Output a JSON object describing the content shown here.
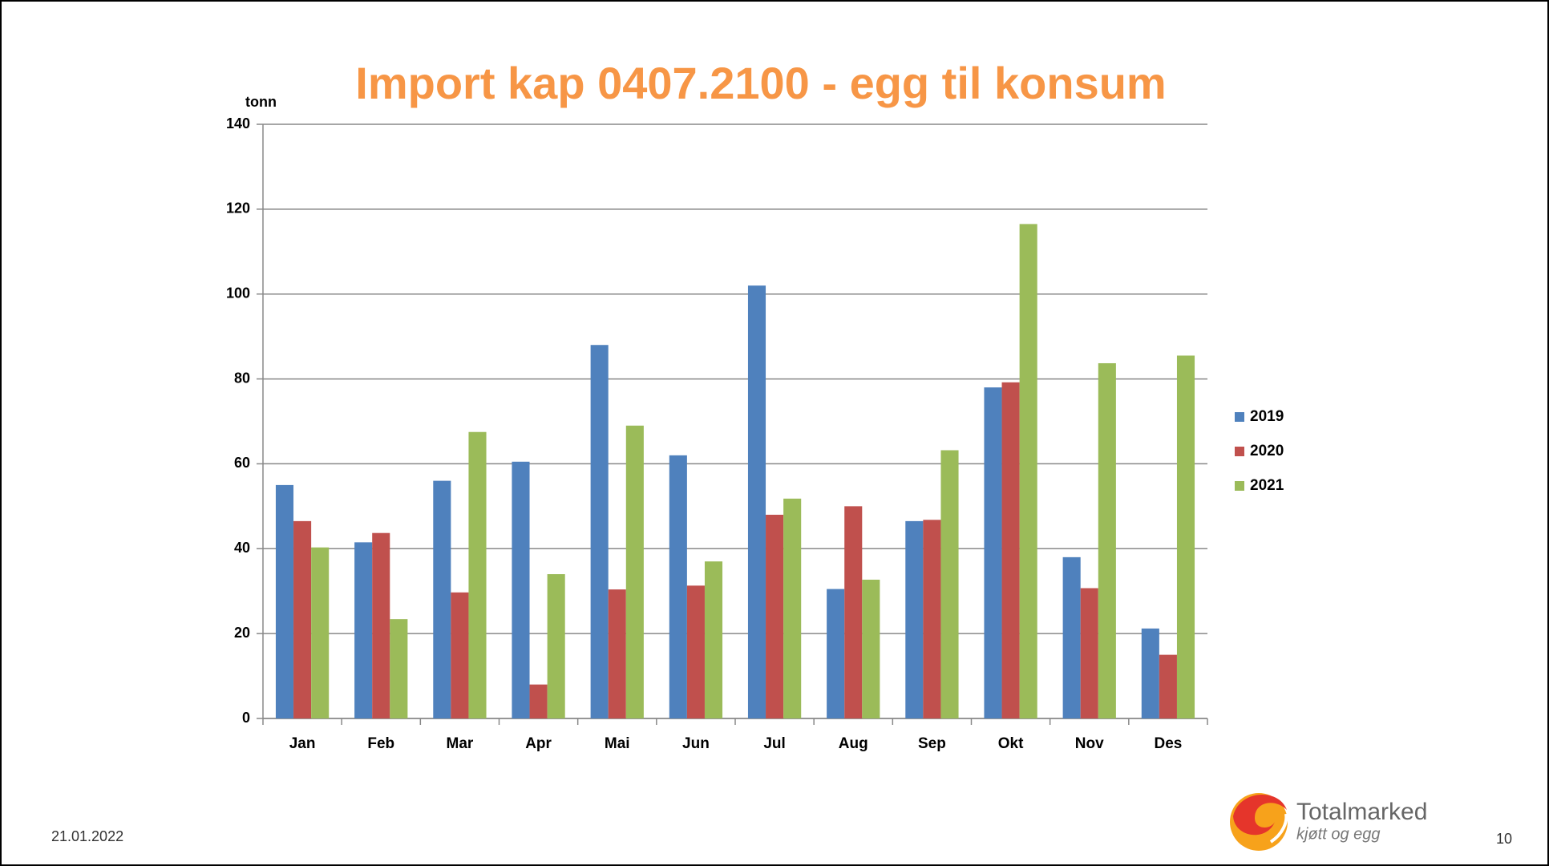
{
  "chart_data": {
    "type": "bar",
    "title": "Import kap 0407.2100 - egg til konsum",
    "y_label": "tonn",
    "categories": [
      "Jan",
      "Feb",
      "Mar",
      "Apr",
      "Mai",
      "Jun",
      "Jul",
      "Aug",
      "Sep",
      "Okt",
      "Nov",
      "Des"
    ],
    "series": [
      {
        "name": "2019",
        "color": "#4f81bd",
        "values": [
          55,
          41.5,
          56,
          60.5,
          88,
          62,
          102,
          30.5,
          46.5,
          78,
          38,
          21.2
        ]
      },
      {
        "name": "2020",
        "color": "#c0504d",
        "values": [
          46.5,
          43.7,
          29.7,
          8,
          30.4,
          31.3,
          48,
          50,
          46.8,
          79.2,
          30.7,
          15
        ]
      },
      {
        "name": "2021",
        "color": "#9bbb59",
        "values": [
          40.3,
          23.4,
          67.5,
          34,
          69,
          37,
          51.8,
          32.7,
          63.2,
          116.5,
          83.7,
          85.5
        ]
      }
    ],
    "ylim": [
      0,
      140
    ],
    "yticks": [
      0,
      20,
      40,
      60,
      80,
      100,
      120,
      140
    ],
    "grid": true,
    "legend": "right"
  },
  "footer": {
    "date": "21.01.2022",
    "page": "10",
    "logo_name": "Totalmarked",
    "logo_tagline": "kjøtt og egg"
  }
}
